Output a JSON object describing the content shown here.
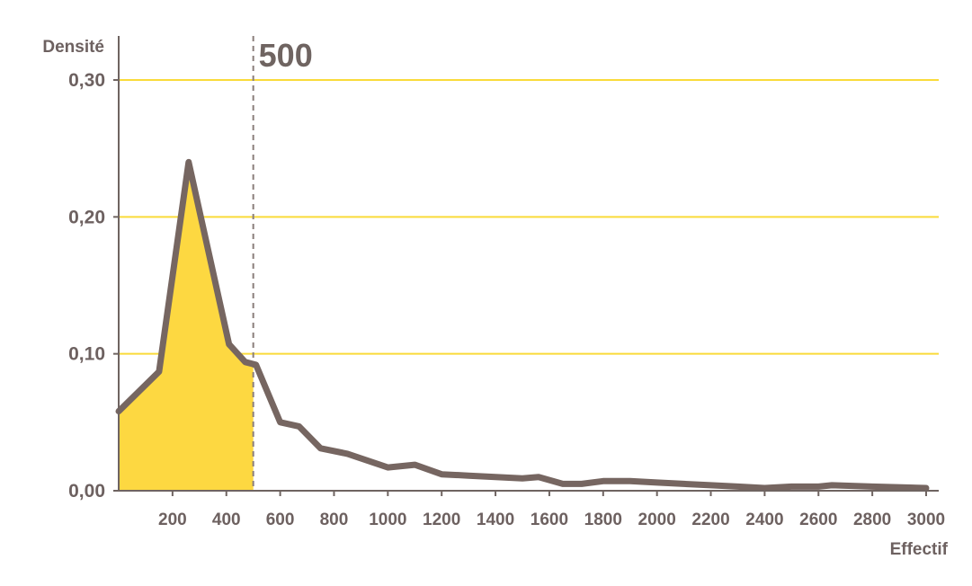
{
  "chart_data": {
    "type": "area",
    "ylabel": "Densité",
    "xlabel": "Effectif",
    "xlim": [
      0,
      3050
    ],
    "ylim": [
      0,
      0.3
    ],
    "y_ticks": [
      0,
      0.1,
      0.2,
      0.3
    ],
    "y_tick_labels": [
      "0,00",
      "0,10",
      "0,20",
      "0,30"
    ],
    "x_ticks": [
      200,
      400,
      600,
      800,
      1000,
      1200,
      1400,
      1600,
      1800,
      2000,
      2200,
      2400,
      2600,
      2800,
      3000
    ],
    "x_tick_labels": [
      "200",
      "400",
      "600",
      "800",
      "1000",
      "1200",
      "1400",
      "1600",
      "1800",
      "2000",
      "2200",
      "2400",
      "2600",
      "2800",
      "3000"
    ],
    "grid": "horizontal",
    "threshold": {
      "x": 500,
      "label": "500"
    },
    "series": [
      {
        "x": [
          0,
          150,
          260,
          410,
          470,
          510,
          600,
          670,
          750,
          850,
          1000,
          1100,
          1200,
          1300,
          1400,
          1500,
          1560,
          1650,
          1720,
          1800,
          1900,
          2000,
          2100,
          2200,
          2300,
          2400,
          2500,
          2600,
          2650,
          2800,
          3000
        ],
        "y": [
          0.058,
          0.087,
          0.24,
          0.107,
          0.094,
          0.092,
          0.05,
          0.047,
          0.031,
          0.027,
          0.017,
          0.019,
          0.012,
          0.011,
          0.01,
          0.009,
          0.01,
          0.005,
          0.005,
          0.007,
          0.007,
          0.006,
          0.005,
          0.004,
          0.003,
          0.002,
          0.003,
          0.003,
          0.004,
          0.003,
          0.002
        ]
      }
    ],
    "colors": {
      "line": "#766661",
      "fill": "#fdd841",
      "grid": "#fadb3a",
      "axis": "#6f6461",
      "threshold": "#8a7e7b"
    }
  }
}
